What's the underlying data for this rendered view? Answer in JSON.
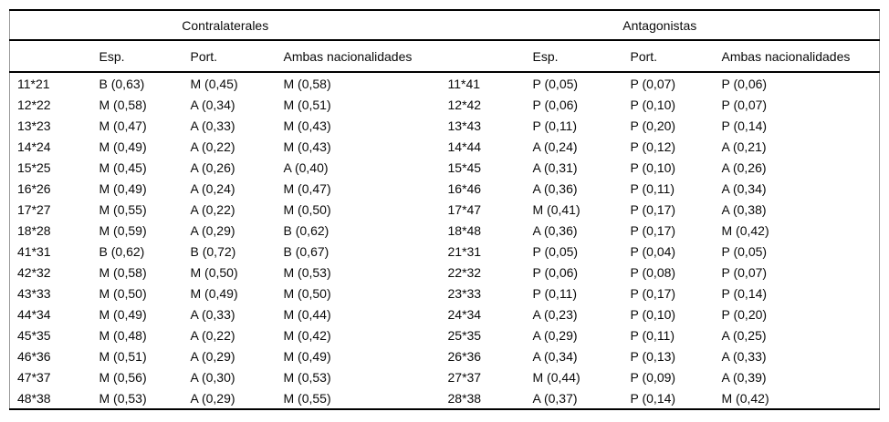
{
  "page": {
    "background": "#ffffff",
    "text_color": "#0a0a0a",
    "rule_color": "#000000"
  },
  "table": {
    "groups": [
      {
        "title": "Contralaterales"
      },
      {
        "title": "Antagonistas"
      }
    ],
    "columns": [
      "",
      "Esp.",
      "Port.",
      "Ambas nacionalidades",
      "",
      "Esp.",
      "Port.",
      "Ambas nacionalidades"
    ],
    "rows": [
      [
        "11*21",
        "B (0,63)",
        "M (0,45)",
        "M (0,58)",
        "11*41",
        "P (0,05)",
        "P (0,07)",
        "P (0,06)"
      ],
      [
        "12*22",
        "M (0,58)",
        "A (0,34)",
        "M (0,51)",
        "12*42",
        "P (0,06)",
        "P (0,10)",
        "P (0,07)"
      ],
      [
        "13*23",
        "M (0,47)",
        "A (0,33)",
        "M (0,43)",
        "13*43",
        "P (0,11)",
        "P (0,20)",
        "P (0,14)"
      ],
      [
        "14*24",
        "M (0,49)",
        "A (0,22)",
        "M (0,43)",
        "14*44",
        "A (0,24)",
        "P (0,12)",
        "A (0,21)"
      ],
      [
        "15*25",
        "M (0,45)",
        "A (0,26)",
        "A (0,40)",
        "15*45",
        "A (0,31)",
        "P (0,10)",
        "A (0,26)"
      ],
      [
        "16*26",
        "M (0,49)",
        "A (0,24)",
        "M (0,47)",
        "16*46",
        "A (0,36)",
        "P (0,11)",
        "A (0,34)"
      ],
      [
        "17*27",
        "M (0,55)",
        "A (0,22)",
        "M (0,50)",
        "17*47",
        "M (0,41)",
        "P (0,17)",
        "A (0,38)"
      ],
      [
        "18*28",
        "M (0,59)",
        "A (0,29)",
        "B (0,62)",
        "18*48",
        "A (0,36)",
        "P (0,17)",
        "M (0,42)"
      ],
      [
        "41*31",
        "B (0,62)",
        "B (0,72)",
        "B (0,67)",
        "21*31",
        "P (0,05)",
        "P (0,04)",
        "P (0,05)"
      ],
      [
        "42*32",
        "M (0,58)",
        "M (0,50)",
        "M (0,53)",
        "22*32",
        "P (0,06)",
        "P (0,08)",
        "P (0,07)"
      ],
      [
        "43*33",
        "M (0,50)",
        "M (0,49)",
        "M (0,50)",
        "23*33",
        "P (0,11)",
        "P (0,17)",
        "P (0,14)"
      ],
      [
        "44*34",
        "M (0,49)",
        "A (0,33)",
        "M (0,44)",
        "24*34",
        "A (0,23)",
        "P (0,10)",
        "P (0,20)"
      ],
      [
        "45*35",
        "M (0,48)",
        "A (0,22)",
        "M (0,42)",
        "25*35",
        "A (0,29)",
        "P (0,11)",
        "A (0,25)"
      ],
      [
        "46*36",
        "M (0,51)",
        "A (0,29)",
        "M (0,49)",
        "26*36",
        "A (0,34)",
        "P (0,13)",
        "A (0,33)"
      ],
      [
        "47*37",
        "M (0,56)",
        "A (0,30)",
        "M (0,53)",
        "27*37",
        "M (0,44)",
        "P (0,09)",
        "A (0,39)"
      ],
      [
        "48*38",
        "M (0,53)",
        "A (0,29)",
        "M (0,55)",
        "28*38",
        "A (0,37)",
        "P (0,14)",
        "M (0,42)"
      ]
    ]
  }
}
